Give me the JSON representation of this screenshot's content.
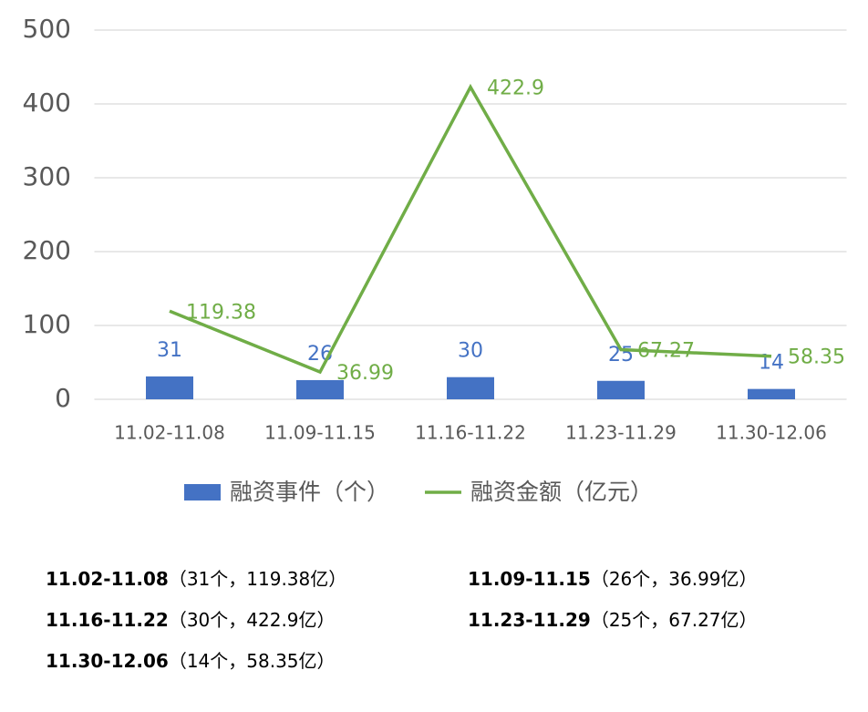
{
  "chart_data": {
    "type": "combo",
    "categories": [
      "11.02-11.08",
      "11.09-11.15",
      "11.16-11.22",
      "11.23-11.29",
      "11.30-12.06"
    ],
    "series": [
      {
        "name": "融资事件（个）",
        "type": "bar",
        "color": "#4472c4",
        "values": [
          31,
          26,
          30,
          25,
          14
        ]
      },
      {
        "name": "融资金额（亿元）",
        "type": "line",
        "color": "#70ad47",
        "values": [
          119.38,
          36.99,
          422.9,
          67.27,
          58.35
        ]
      }
    ],
    "ylim": [
      0,
      500
    ],
    "yticks": [
      0,
      100,
      200,
      300,
      400,
      500
    ],
    "grid": true,
    "legend": "bottom"
  },
  "notes": [
    {
      "label": "11.02-11.08",
      "detail": "（31个，119.38亿）"
    },
    {
      "label": "11.09-11.15",
      "detail": "（26个，36.99亿）"
    },
    {
      "label": "11.16-11.22",
      "detail": "（30个，422.9亿）"
    },
    {
      "label": "11.23-11.29",
      "detail": "（25个，67.27亿）"
    },
    {
      "label": "11.30-12.06",
      "detail": "（14个，58.35亿）"
    }
  ]
}
